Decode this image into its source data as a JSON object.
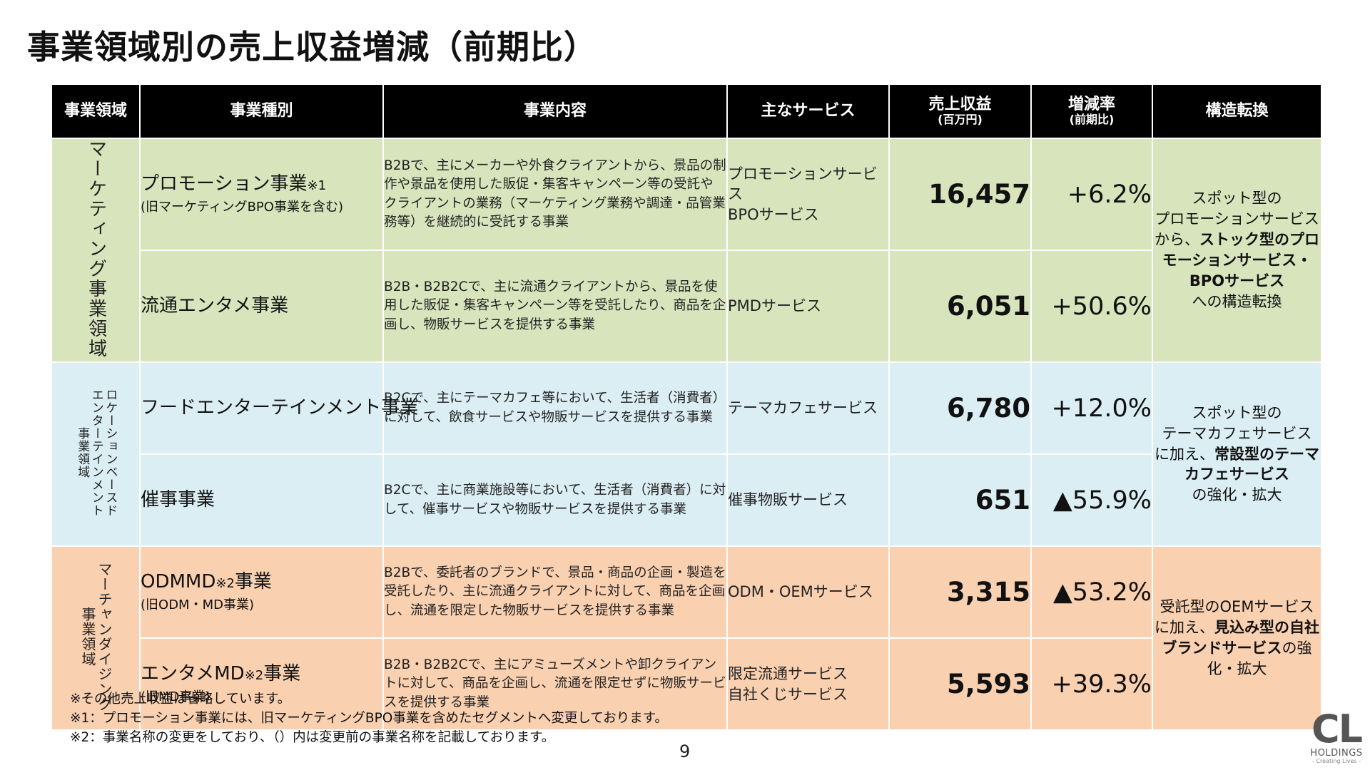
{
  "title": "事業領域別の売上収益増減（前期比）",
  "table": {
    "headers": {
      "domain": "事業領域",
      "type": "事業種別",
      "content": "事業内容",
      "services": "主なサービス",
      "revenue": "売上収益",
      "revenue_unit": "(百万円)",
      "change": "増減率",
      "change_sub": "(前期比)",
      "transform": "構造転換"
    },
    "groups": [
      {
        "domain": "マーケティング事業領域",
        "color": "#d8e4bc",
        "transform": [
          "スポット型の",
          "プロモーションサービスから、",
          "ストック型のプロモーションサービス・BPOサービス",
          "への構造転換"
        ],
        "rows": [
          {
            "type": "プロモーション事業",
            "type_note": "※1",
            "type_old": "(旧マーケティングBPO事業を含む)",
            "content": "B2Bで、主にメーカーや外食クライアントから、景品の制作や景品を使用した販促・集客キャンペーン等の受託やクライアントの業務（マーケティング業務や調達・品管業務等）を継続的に受託する事業",
            "services": [
              "プロモーションサービス",
              "BPOサービス"
            ],
            "revenue": "16,457",
            "change": "+6.2%"
          },
          {
            "type": "流通エンタメ事業",
            "type_note": "",
            "type_old": "",
            "content": "B2B・B2B2Cで、主に流通クライアントから、景品を使用した販促・集客キャンペーン等を受託したり、商品を企画し、物販サービスを提供する事業",
            "services": [
              "PMDサービス"
            ],
            "revenue": "6,051",
            "change": "+50.6%"
          }
        ]
      },
      {
        "domain_lines": [
          "ロケーションベースド",
          "エンターテインメント",
          "事業領域"
        ],
        "color": "#dbeef4",
        "transform": [
          "スポット型の",
          "テーマカフェサービス",
          "に加え、",
          "常設型のテーマカフェサービス",
          "の強化・拡大"
        ],
        "rows": [
          {
            "type": "フードエンターテインメント事業",
            "type_note": "",
            "type_old": "",
            "content": "B2Cで、主にテーマカフェ等において、生活者（消費者）に対して、飲食サービスや物販サービスを提供する事業",
            "services": [
              "テーマカフェサービス"
            ],
            "revenue": "6,780",
            "change": "+12.0%"
          },
          {
            "type": "催事事業",
            "type_note": "",
            "type_old": "",
            "content": "B2Cで、主に商業施設等において、生活者（消費者）に対して、催事サービスや物販サービスを提供する事業",
            "services": [
              "催事物販サービス"
            ],
            "revenue": "651",
            "change": "▲55.9%"
          }
        ]
      },
      {
        "domain_lines": [
          "マーチャンダイジング",
          "事業領域"
        ],
        "color": "#f9d0b0",
        "transform": [
          "受託型のOEMサービスに加え、",
          "見込み型の自社ブランドサービス",
          "の強化・拡大"
        ],
        "rows": [
          {
            "type": "ODMMD",
            "type_note": "※2",
            "type_suffix": "事業",
            "type_old": "(旧ODM・MD事業)",
            "content": "B2Bで、委託者のブランドで、景品・商品の企画・製造を受託したり、主に流通クライアントに対して、商品を企画し、流通を限定した物販サービスを提供する事業",
            "services": [
              "ODM・OEMサービス"
            ],
            "revenue": "3,315",
            "change": "▲53.2%"
          },
          {
            "type": "エンタメMD",
            "type_note": "※2",
            "type_suffix": "事業",
            "type_old": "(旧MD事業)",
            "content": "B2B・B2B2Cで、主にアミューズメントや卸クライアントに対して、商品を企画し、流通を限定せずに物販サービスを提供する事業",
            "services": [
              "限定流通サービス",
              "自社くじサービス"
            ],
            "revenue": "5,593",
            "change": "+39.3%"
          }
        ]
      }
    ]
  },
  "footnotes": [
    "※その他売上収益は省略しています。",
    "※1：プロモーション事業には、旧マーケティングBPO事業を含めたセグメントへ変更しております。",
    "※2：事業名称の変更をしており、（）内は変更前の事業名称を記載しております。"
  ],
  "page_number": "9",
  "logo": {
    "mark": "CL",
    "name": "HOLDINGS",
    "tagline": "- Creating Lives -"
  }
}
